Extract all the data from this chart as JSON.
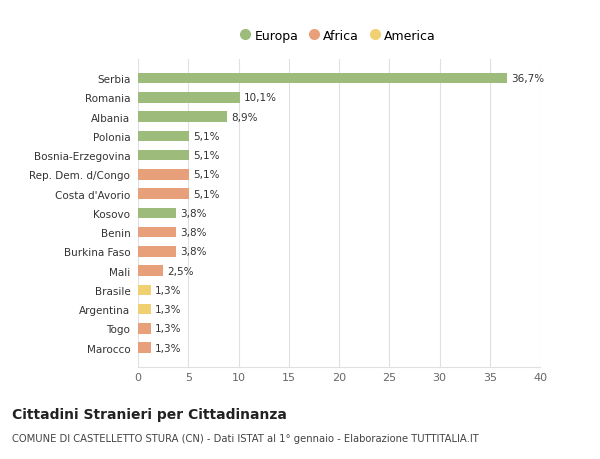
{
  "categories": [
    "Marocco",
    "Togo",
    "Argentina",
    "Brasile",
    "Mali",
    "Burkina Faso",
    "Benin",
    "Kosovo",
    "Costa d'Avorio",
    "Rep. Dem. d/Congo",
    "Bosnia-Erzegovina",
    "Polonia",
    "Albania",
    "Romania",
    "Serbia"
  ],
  "values": [
    1.3,
    1.3,
    1.3,
    1.3,
    2.5,
    3.8,
    3.8,
    3.8,
    5.1,
    5.1,
    5.1,
    5.1,
    8.9,
    10.1,
    36.7
  ],
  "continents": [
    "Africa",
    "Africa",
    "America",
    "America",
    "Africa",
    "Africa",
    "Africa",
    "Europa",
    "Africa",
    "Africa",
    "Europa",
    "Europa",
    "Europa",
    "Europa",
    "Europa"
  ],
  "bar_colors": [
    "#e8a07a",
    "#e8a07a",
    "#f0d070",
    "#f0d070",
    "#e8a07a",
    "#e8a07a",
    "#e8a07a",
    "#9dbb7a",
    "#e8a07a",
    "#e8a07a",
    "#9dbb7a",
    "#9dbb7a",
    "#9dbb7a",
    "#9dbb7a",
    "#9dbb7a"
  ],
  "xlim": [
    0,
    40
  ],
  "xticks": [
    0,
    5,
    10,
    15,
    20,
    25,
    30,
    35,
    40
  ],
  "title": "Cittadini Stranieri per Cittadinanza",
  "subtitle": "COMUNE DI CASTELLETTO STURA (CN) - Dati ISTAT al 1° gennaio - Elaborazione TUTTITALIA.IT",
  "legend_labels": [
    "Europa",
    "Africa",
    "America"
  ],
  "legend_colors": [
    "#9dbb7a",
    "#e8a07a",
    "#f0d070"
  ],
  "bg_color": "#ffffff",
  "grid_color": "#e0e0e0"
}
